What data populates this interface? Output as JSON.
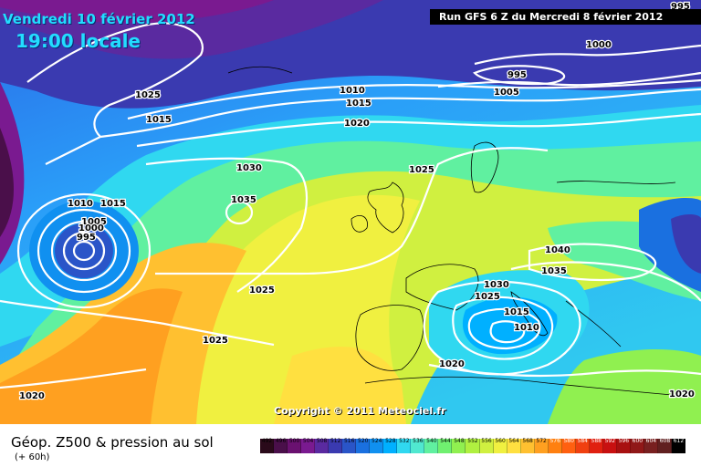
{
  "header": {
    "date": "Vendredi 10 février 2012",
    "time": "19:00 locale",
    "run": "Run GFS 6 Z du Mercredi 8 février 2012"
  },
  "copyright": "Copyright © 2011 Meteociel.fr",
  "legend": {
    "title": "Géop. Z500 & pression au sol",
    "subtitle": "(+ 60h)",
    "scale": [
      "492",
      "496",
      "500",
      "504",
      "508",
      "512",
      "516",
      "520",
      "524",
      "528",
      "532",
      "536",
      "540",
      "544",
      "548",
      "552",
      "556",
      "560",
      "564",
      "568",
      "572",
      "576",
      "580",
      "584",
      "588",
      "592",
      "596",
      "600",
      "604",
      "608",
      "612"
    ],
    "colors": [
      "#2a0a1a",
      "#4a0f4a",
      "#6a1170",
      "#7a1a90",
      "#5a2aa0",
      "#3a3ab0",
      "#2a55c8",
      "#1a70e0",
      "#1090f0",
      "#00b0ff",
      "#30d8f0",
      "#50e8d0",
      "#60f0a0",
      "#70f070",
      "#90f050",
      "#b0f040",
      "#d0f040",
      "#f0f040",
      "#ffe040",
      "#ffc030",
      "#ffa020",
      "#ff8010",
      "#ff6010",
      "#f04010",
      "#e02010",
      "#c81010",
      "#a81010",
      "#901818",
      "#782020",
      "#602020",
      "#000000"
    ]
  },
  "isobar_labels": [
    "1025",
    "1015",
    "1010",
    "1015",
    "1020",
    "1000",
    "995",
    "1005",
    "1030",
    "1035",
    "1025",
    "1010",
    "1015",
    "1005",
    "1000",
    "995",
    "1025",
    "1025",
    "1020",
    "1040",
    "1035",
    "1030",
    "1025",
    "1015",
    "1010",
    "1020",
    "1020",
    "995"
  ],
  "colors": {
    "title": "#22ddff",
    "isobar": "#ffffff"
  }
}
